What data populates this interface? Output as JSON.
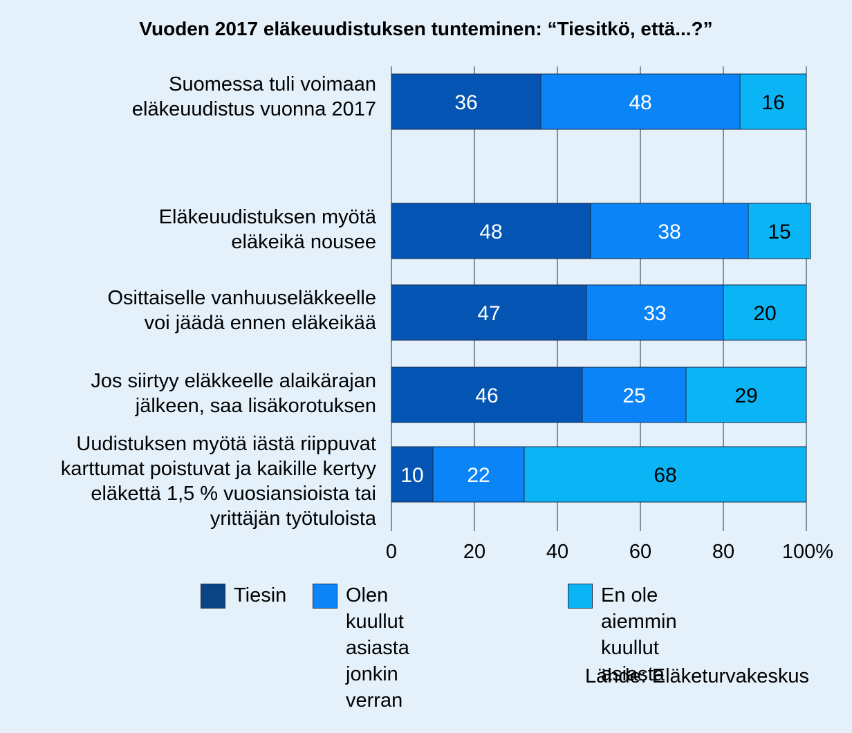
{
  "chart_data": {
    "type": "bar",
    "orientation": "horizontal",
    "stacked": true,
    "title": "Vuoden 2017 eläkeuudistuksen tunteminen: “Tiesitkö, että...?”",
    "categories": [
      "Suomessa tuli voimaan\neläkeuudistus vuonna 2017",
      "Eläkeuudistuksen myötä\neläkeikä nousee",
      "Osittaiselle vanhuuseläkkeelle\nvoi jäädä ennen eläkeikää",
      "Jos siirtyy eläkkeelle alaikärajan\njälkeen, saa lisäkorotuksen",
      "Uudistuksen myötä iästä riippuvat\nkarttumat poistuvat ja kaikille kertyy\neläkettä 1,5 % vuosiansioista tai\nyrittäjän työtuloista"
    ],
    "series": [
      {
        "name": "Tiesin",
        "values": [
          36,
          48,
          47,
          46,
          10
        ],
        "color": "#0455b3"
      },
      {
        "name": "Olen kuullut asiasta\njonkin verran",
        "values": [
          48,
          38,
          33,
          25,
          22
        ],
        "color": "#0a84f7"
      },
      {
        "name": "En ole aiemmin\nkuullut asiasta",
        "values": [
          16,
          15,
          20,
          29,
          68
        ],
        "color": "#0bb5f5"
      }
    ],
    "xlim": [
      0,
      100
    ],
    "xticks": [
      "0",
      "20",
      "40",
      "60",
      "80",
      "100%"
    ],
    "grid": true,
    "legend_position": "bottom",
    "source": "Lähde: Eläketurvakeskus"
  }
}
